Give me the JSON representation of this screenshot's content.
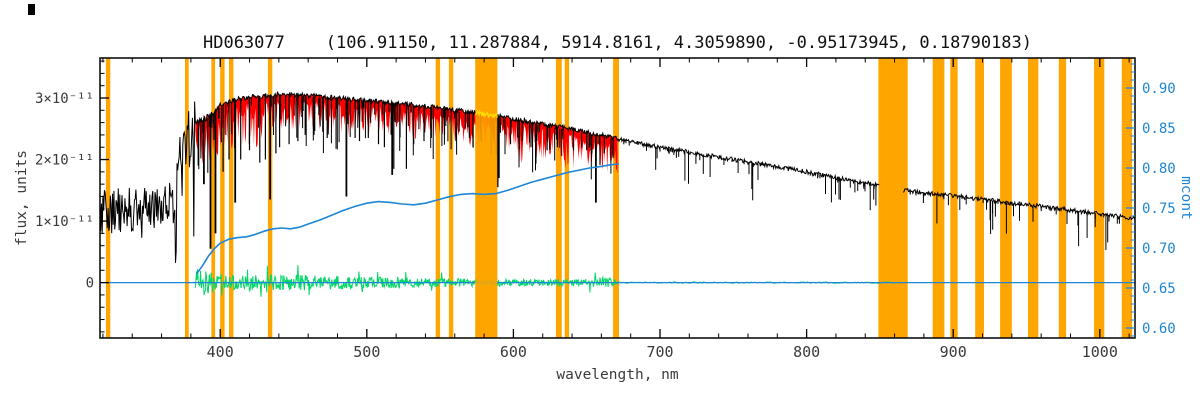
{
  "chart_data": {
    "type": "line",
    "title": "HD063077    (106.91150, 11.287884, 5914.8161, 4.3059890, -0.95173945, 0.18790183)",
    "xlabel": "wavelength, nm",
    "flux_in_units_of": "1e-11",
    "noise_seed": 20240613,
    "baseline_flux": 0,
    "colors": {
      "spectrum": "#000000",
      "depression": "#ff0000",
      "residual": "#00d965",
      "accent": "#1e86d6",
      "mask": "#ffa500",
      "highlight": "#ffdf00",
      "frame": "#000000",
      "tick_text": "#3a3a3a"
    },
    "x_axis": {
      "range": [
        318,
        1024
      ],
      "ticks": [
        400,
        500,
        600,
        700,
        800,
        900,
        1000
      ],
      "minor_step": 20
    },
    "left_axis": {
      "label": "flux, units",
      "range": [
        -0.9,
        3.65
      ],
      "ticks": [
        0,
        1,
        2,
        3
      ],
      "tick_labels": [
        "0",
        "1×10⁻¹¹",
        "2×10⁻¹¹",
        "3×10⁻¹¹"
      ]
    },
    "right_axis": {
      "label": "mcont",
      "range": [
        0.5875,
        0.9375
      ],
      "ticks": [
        0.6,
        0.65,
        0.7,
        0.75,
        0.8,
        0.85,
        0.9
      ]
    },
    "masked_regions_nm": [
      [
        322,
        325
      ],
      [
        376,
        378.5
      ],
      [
        394,
        396.5
      ],
      [
        400,
        403
      ],
      [
        406,
        409
      ],
      [
        432.5,
        435.5
      ],
      [
        547,
        550
      ],
      [
        556,
        559
      ],
      [
        574,
        589
      ],
      [
        629,
        633
      ],
      [
        635,
        638
      ],
      [
        668,
        672
      ],
      [
        849,
        869
      ],
      [
        886,
        894
      ],
      [
        898,
        903
      ],
      [
        915,
        921
      ],
      [
        932,
        940
      ],
      [
        951,
        958
      ],
      [
        972,
        977
      ],
      [
        996,
        1003
      ],
      [
        1015,
        1022
      ]
    ],
    "overlay_band": [
      574,
      589
    ],
    "spectrum": {
      "gap": [
        849.5,
        866
      ],
      "continuum": [
        [
          318,
          1.15
        ],
        [
          330,
          1.2
        ],
        [
          345,
          1.22
        ],
        [
          360,
          1.25
        ],
        [
          368,
          1.32
        ],
        [
          372,
          1.85
        ],
        [
          376,
          2.2
        ],
        [
          380,
          2.45
        ],
        [
          383,
          2.6
        ],
        [
          388,
          2.66
        ],
        [
          393,
          2.7
        ],
        [
          400,
          2.88
        ],
        [
          408,
          2.96
        ],
        [
          415,
          3.0
        ],
        [
          425,
          3.03
        ],
        [
          440,
          3.06
        ],
        [
          455,
          3.05
        ],
        [
          470,
          3.02
        ],
        [
          485,
          2.99
        ],
        [
          500,
          2.96
        ],
        [
          515,
          2.93
        ],
        [
          530,
          2.89
        ],
        [
          545,
          2.85
        ],
        [
          560,
          2.8
        ],
        [
          575,
          2.76
        ],
        [
          590,
          2.7
        ],
        [
          605,
          2.64
        ],
        [
          620,
          2.57
        ],
        [
          635,
          2.51
        ],
        [
          650,
          2.44
        ],
        [
          665,
          2.37
        ],
        [
          680,
          2.29
        ],
        [
          695,
          2.22
        ],
        [
          710,
          2.16
        ],
        [
          725,
          2.1
        ],
        [
          740,
          2.04
        ],
        [
          755,
          1.98
        ],
        [
          770,
          1.92
        ],
        [
          785,
          1.86
        ],
        [
          800,
          1.8
        ],
        [
          815,
          1.73
        ],
        [
          830,
          1.66
        ],
        [
          842,
          1.61
        ],
        [
          849,
          1.58
        ],
        [
          866,
          1.5
        ],
        [
          880,
          1.46
        ],
        [
          895,
          1.42
        ],
        [
          910,
          1.38
        ],
        [
          925,
          1.34
        ],
        [
          940,
          1.29
        ],
        [
          955,
          1.25
        ],
        [
          970,
          1.21
        ],
        [
          985,
          1.16
        ],
        [
          1000,
          1.12
        ],
        [
          1012,
          1.08
        ],
        [
          1024,
          1.04
        ]
      ],
      "noise_zones": [
        [
          318,
          345,
          0.4
        ],
        [
          345,
          368,
          0.36
        ],
        [
          368,
          376,
          0.5
        ],
        [
          376,
          383,
          0.55
        ],
        [
          383,
          400,
          0.05
        ],
        [
          400,
          671,
          0.04
        ],
        [
          671,
          849.5,
          0.035
        ],
        [
          866,
          1024,
          0.035
        ]
      ],
      "uv_spikes": [
        318,
        368,
        0.1,
        0.45
      ],
      "balmer_spikes": [
        368,
        383,
        0.3,
        1.5
      ]
    },
    "depression": {
      "x_range": [
        383,
        671
      ],
      "base": 0.1,
      "scale": 0.55,
      "weight_zones": [
        [
          383,
          430,
          1.3
        ],
        [
          430,
          520,
          0.9
        ],
        [
          520,
          600,
          0.8
        ],
        [
          600,
          671,
          1.05
        ]
      ]
    },
    "absorption_lines": [
      [
        385,
        1.9
      ],
      [
        388.9,
        1.6
      ],
      [
        393.4,
        0.55
      ],
      [
        396.8,
        0.8
      ],
      [
        402,
        1.8
      ],
      [
        406,
        2.0
      ],
      [
        410.2,
        1.3
      ],
      [
        414,
        2.0
      ],
      [
        420,
        2.15
      ],
      [
        427,
        1.95
      ],
      [
        430.8,
        2.0
      ],
      [
        434,
        1.35
      ],
      [
        438,
        2.1
      ],
      [
        440.5,
        2.2
      ],
      [
        447,
        2.25
      ],
      [
        453,
        2.3
      ],
      [
        458,
        2.4
      ],
      [
        464,
        2.4
      ],
      [
        470,
        2.45
      ],
      [
        473,
        2.35
      ],
      [
        486.1,
        1.4
      ],
      [
        492,
        2.35
      ],
      [
        495,
        2.3
      ],
      [
        501,
        2.35
      ],
      [
        508,
        2.25
      ],
      [
        512,
        2.2
      ],
      [
        517.3,
        1.75
      ],
      [
        518.4,
        1.85
      ],
      [
        527,
        1.85
      ],
      [
        532,
        2.25
      ],
      [
        539,
        2.3
      ],
      [
        544,
        2.35
      ],
      [
        553,
        2.4
      ],
      [
        561,
        2.35
      ],
      [
        570,
        2.35
      ],
      [
        578,
        2.3
      ],
      [
        589.2,
        1.55
      ],
      [
        590,
        1.7
      ],
      [
        598,
        2.25
      ],
      [
        606,
        2.3
      ],
      [
        612,
        2.2
      ],
      [
        623,
        2.15
      ],
      [
        630,
        2.2
      ],
      [
        641,
        2.15
      ],
      [
        650,
        2.15
      ],
      [
        656.3,
        1.3
      ],
      [
        662,
        2.1
      ],
      [
        668,
        2.05
      ]
    ],
    "minor_line_count": 130,
    "nir_line_count": 110,
    "telluric_zones": [
      [
        686,
        698,
        1.3
      ],
      [
        715,
        737,
        1.8
      ],
      [
        753,
        775,
        2.2
      ],
      [
        810,
        848,
        1.6
      ],
      [
        888,
        1012,
        1.8
      ]
    ],
    "residual": {
      "x_range": [
        383,
        672
      ],
      "tail_end": 861,
      "tail_amp": 0.012,
      "spike_factor": 2.3,
      "amplitude": [
        [
          383,
          0.26
        ],
        [
          390,
          0.2
        ],
        [
          400,
          0.14
        ],
        [
          420,
          0.12
        ],
        [
          455,
          0.13
        ],
        [
          470,
          0.12
        ],
        [
          500,
          0.09
        ],
        [
          540,
          0.08
        ],
        [
          580,
          0.06
        ],
        [
          620,
          0.05
        ],
        [
          648,
          0.06
        ],
        [
          660,
          0.09
        ],
        [
          672,
          0.04
        ]
      ]
    },
    "mcont": {
      "points": [
        [
          384,
          0.668
        ],
        [
          388,
          0.678
        ],
        [
          392,
          0.69
        ],
        [
          396,
          0.699
        ],
        [
          400,
          0.706
        ],
        [
          406,
          0.711
        ],
        [
          412,
          0.713
        ],
        [
          418,
          0.714
        ],
        [
          424,
          0.717
        ],
        [
          430,
          0.721
        ],
        [
          436,
          0.724
        ],
        [
          442,
          0.725
        ],
        [
          448,
          0.724
        ],
        [
          454,
          0.726
        ],
        [
          460,
          0.73
        ],
        [
          468,
          0.735
        ],
        [
          476,
          0.741
        ],
        [
          484,
          0.747
        ],
        [
          492,
          0.752
        ],
        [
          500,
          0.756
        ],
        [
          508,
          0.758
        ],
        [
          516,
          0.757
        ],
        [
          524,
          0.755
        ],
        [
          532,
          0.754
        ],
        [
          540,
          0.756
        ],
        [
          548,
          0.76
        ],
        [
          556,
          0.764
        ],
        [
          564,
          0.767
        ],
        [
          572,
          0.768
        ],
        [
          580,
          0.767
        ],
        [
          588,
          0.768
        ],
        [
          596,
          0.772
        ],
        [
          604,
          0.777
        ],
        [
          612,
          0.782
        ],
        [
          620,
          0.786
        ],
        [
          628,
          0.79
        ],
        [
          636,
          0.794
        ],
        [
          644,
          0.797
        ],
        [
          652,
          0.8
        ],
        [
          660,
          0.802
        ],
        [
          666,
          0.804
        ],
        [
          672,
          0.805
        ]
      ]
    }
  }
}
